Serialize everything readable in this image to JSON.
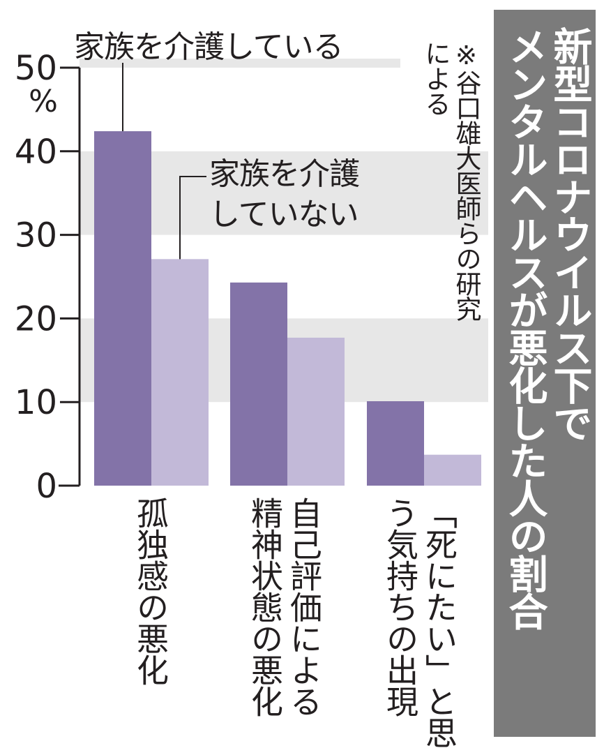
{
  "title_lines": [
    "新型コロナウイルス下で",
    "メンタルヘルスが悪化した人の割合"
  ],
  "note_lines": [
    "※谷口雄大医師らの研究",
    "による"
  ],
  "chart_data": {
    "type": "bar",
    "title": "新型コロナウイルス下でメンタルヘルスが悪化した人の割合",
    "categories": [
      "孤独感の悪化",
      "自己評価による精神状態の悪化",
      "「死にたい」と思う気持ちの出現"
    ],
    "category_label_lines": [
      [
        "孤独感の悪化"
      ],
      [
        "自己評価による",
        "精神状態の悪化"
      ],
      [
        "「死にたい」と思",
        "う気持ちの出現"
      ]
    ],
    "series": [
      {
        "name": "家族を介護している",
        "color": "#8373a8",
        "values": [
          42.4,
          24.3,
          10.1
        ]
      },
      {
        "name": "家族を介護していない",
        "color": "#c2b9d8",
        "values": [
          27.1,
          17.7,
          3.7
        ]
      }
    ],
    "series_label_lines": [
      [
        "家族を介護している"
      ],
      [
        "家族を介護",
        "していない"
      ]
    ],
    "yticks": [
      0,
      10,
      20,
      30,
      40,
      50
    ],
    "ytick_labels": [
      "0",
      "10",
      "20",
      "30",
      "40",
      "50"
    ],
    "yunit": "%",
    "ylim": [
      0,
      50
    ],
    "ylabel": "",
    "xlabel": "",
    "band_color": "#e7e7e7",
    "grid": false
  }
}
